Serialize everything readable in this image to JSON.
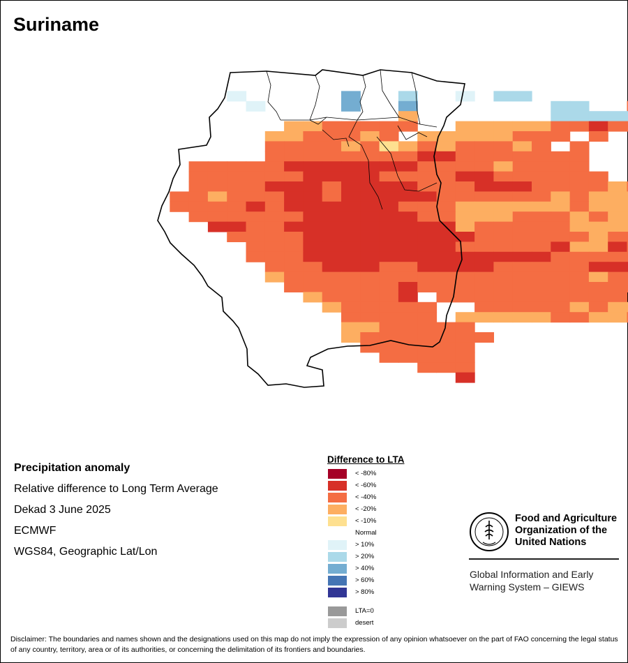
{
  "map": {
    "title": "Suriname"
  },
  "info": {
    "title": "Precipitation anomaly",
    "subtitle": "Relative difference to Long Term Average",
    "period": "Dekad 3 June 2025",
    "source": "ECMWF",
    "projection": "WGS84, Geographic Lat/Lon"
  },
  "legend": {
    "title": "Difference to LTA",
    "items": [
      {
        "label": "< -80%",
        "color": "#a50026"
      },
      {
        "label": "< -60%",
        "color": "#d73027"
      },
      {
        "label": "< -40%",
        "color": "#f46d43"
      },
      {
        "label": "< -20%",
        "color": "#fdae61"
      },
      {
        "label": "< -10%",
        "color": "#fee090"
      },
      {
        "label": "Normal",
        "color": "#ffffff"
      },
      {
        "label": "> 10%",
        "color": "#e0f3f8"
      },
      {
        "label": "> 20%",
        "color": "#abd9e9"
      },
      {
        "label": "> 40%",
        "color": "#74add1"
      },
      {
        "label": "> 60%",
        "color": "#4575b4"
      },
      {
        "label": "> 80%",
        "color": "#313695"
      },
      {
        "label": "LTA=0",
        "color": "#999999"
      },
      {
        "label": "desert",
        "color": "#cccccc"
      }
    ]
  },
  "grid": {
    "rows": [
      "...@@@@@..@@@@@@@@@@@@@@@@@@",
      "....6.....8..7..6.77.......5",
      ".....6....8..8.......77..3.5",
      ".............4.......7777777",
      ".......4433333..4444433233...",
      "......4433343.44444333.3.....",
      "......333343543433343.3......",
      "......33333333223333333......",
      "..333332222222333343333......",
      "..3333332222333322333333.....",
      "..333322232222333222333343...",
      ".33433322322222333333434444..",
      ".33332322222233344444434444..",
      "..3333332222223344433343443..",
      "...2233222222222433333444433",
      "....33332222222223333334333.",
      ".....333222222223333324423..",
      ".....33322222222222223333322.",
      "......333222332222333332223...",
      "......4333333333333333343333.",
      ".......33333323333333333333.",
      "........433332.3333333333..",
      ".........433333..333334344..",
      "..........33333.4444433443..",
      "..........4433333..........",
      "..........43333333.........",
      "...........333333..........",
      "............33333..........",
      "..............333..........",
      "................2.........."
    ]
  },
  "fao": {
    "org_line1": "Food and Agriculture",
    "org_line2": "Organization of the",
    "org_line3": "United Nations",
    "logo_text": "FAO",
    "logo_motto": "FIAT PANIS",
    "giews_line1": "Global Information and Early",
    "giews_line2": "Warning System – GIEWS"
  },
  "disclaimer": "Disclaimer: The boundaries and names shown and the designations used on this map do not imply the expression of any opinion whatsoever on the part of FAO concerning the legal status of any country, territory, area or of its authorities, or concerning the delimitation of its frontiers and boundaries."
}
